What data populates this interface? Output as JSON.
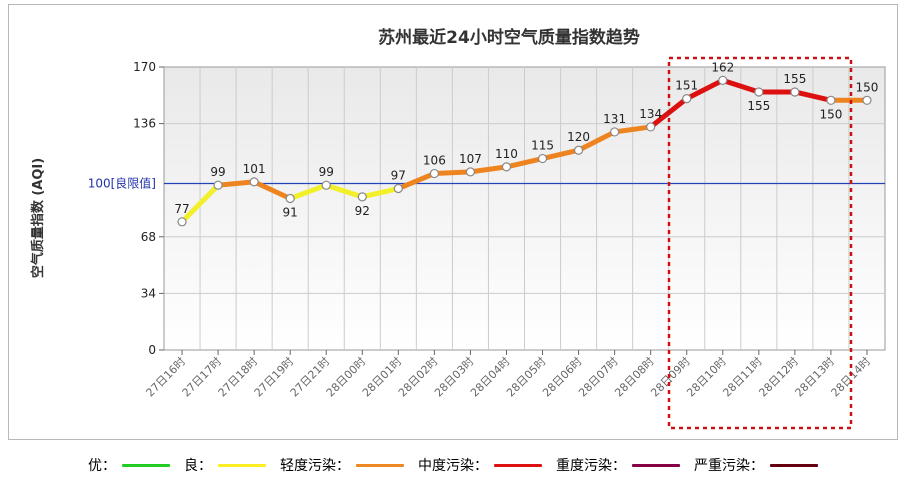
{
  "chart_data": {
    "type": "line",
    "title": "苏州最近24小时空气质量指数趋势",
    "ylabel": "空气质量指数 (AQI)",
    "xlabel": "",
    "ylim": [
      0,
      170
    ],
    "yticks": [
      0,
      34,
      68,
      136,
      170
    ],
    "reference_line": {
      "value": 100,
      "label": "100[良限值]",
      "color": "#2244bb"
    },
    "categories": [
      "27日16时",
      "27日17时",
      "27日18时",
      "27日19时",
      "27日21时",
      "28日00时",
      "28日01时",
      "28日02时",
      "28日03时",
      "28日04时",
      "28日05时",
      "28日06时",
      "28日07时",
      "28日08时",
      "28日09时",
      "28日10时",
      "28日11时",
      "28日12时",
      "28日13时",
      "28日14时"
    ],
    "values": [
      77,
      99,
      101,
      91,
      99,
      92,
      97,
      106,
      107,
      110,
      115,
      120,
      131,
      134,
      151,
      162,
      155,
      155,
      150,
      150
    ],
    "grid": true
  },
  "legend": [
    {
      "label": "优：",
      "color": "#22cc22"
    },
    {
      "label": "良：",
      "color": "#ffee22"
    },
    {
      "label": "轻度污染：",
      "color": "#ee8822"
    },
    {
      "label": "中度污染：",
      "color": "#dd1111"
    },
    {
      "label": "重度污染：",
      "color": "#880044"
    },
    {
      "label": "严重污染：",
      "color": "#660011"
    }
  ],
  "colors": {
    "good": "#f2f028",
    "light": "#ee8420",
    "moderate": "#dd1010",
    "highlight_box": "#cc1111",
    "grid": "#cccccc",
    "plot_bg_top": "#e8e8e8",
    "plot_bg_bottom": "#ffffff"
  }
}
